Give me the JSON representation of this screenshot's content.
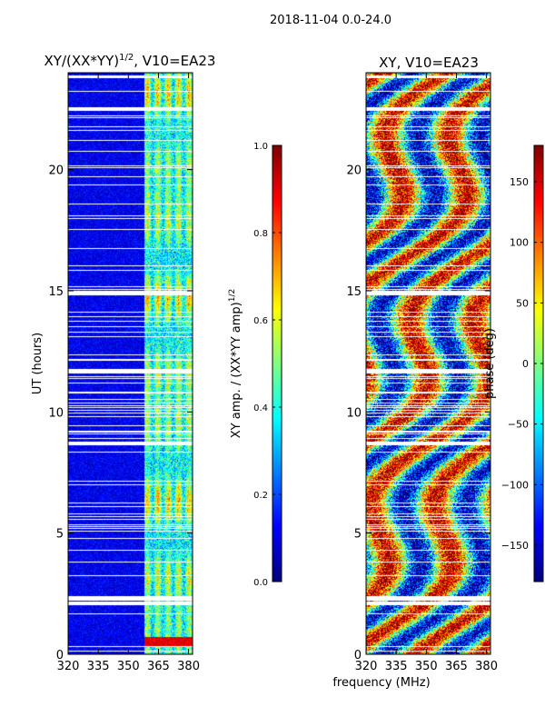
{
  "suptitle": "2018-11-04 0.0-24.0",
  "xlabel_shared": "frequency (MHz)",
  "chart_data": [
    {
      "type": "heatmap",
      "title_main": "XY/(XX*YY)",
      "title_exp": "1/2",
      "title_tail": ", V10=EA23",
      "xlim": [
        320,
        382
      ],
      "xticks": [
        320,
        335,
        350,
        365,
        380
      ],
      "ylim": [
        0,
        24
      ],
      "yticks": [
        0,
        5,
        10,
        15,
        20
      ],
      "ylabel": "UT (hours)",
      "colorbar": {
        "label_main": "XY amp. / (XX*YY amp)",
        "label_exp": "1/2",
        "vmin": 0.0,
        "vmax": 1.0,
        "ticks": [
          "0.0",
          "0.2",
          "0.4",
          "0.6",
          "0.8",
          "1.0"
        ],
        "tick_values": [
          0.0,
          0.2,
          0.4,
          0.6,
          0.8,
          1.0
        ]
      },
      "band_start_mhz": 358,
      "colormap": "jet"
    },
    {
      "type": "heatmap",
      "title": "XY, V10=EA23",
      "xlim": [
        320,
        382
      ],
      "xticks": [
        320,
        335,
        350,
        365,
        380
      ],
      "ylim": [
        0,
        24
      ],
      "yticks": [
        0,
        5,
        10,
        15,
        20
      ],
      "colorbar": {
        "label": "phase (deg)",
        "vmin": -180,
        "vmax": 180,
        "ticks": [
          "−150",
          "−100",
          "−50",
          "0",
          "50",
          "100",
          "150"
        ],
        "tick_values": [
          -150,
          -100,
          -50,
          0,
          50,
          100,
          150
        ]
      },
      "colormap": "jet"
    }
  ]
}
